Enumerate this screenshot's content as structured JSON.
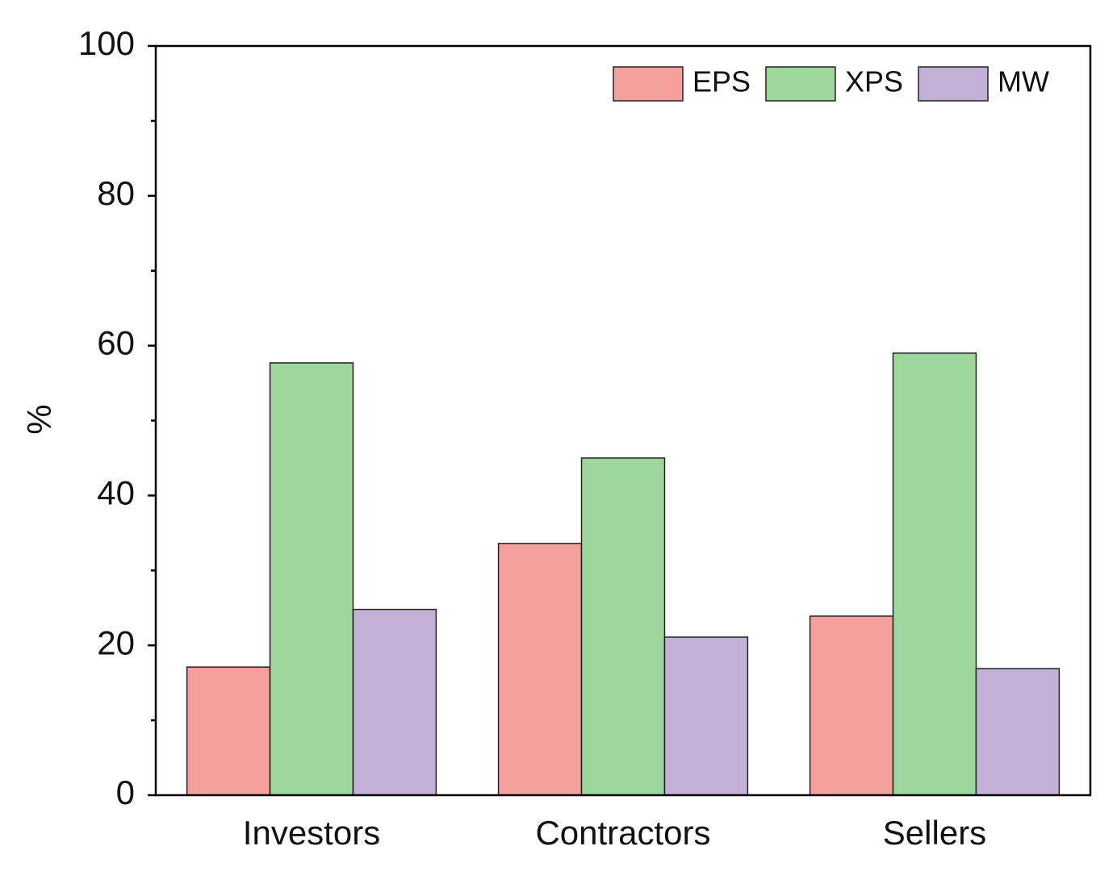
{
  "chart_data": {
    "type": "bar",
    "y_label": "%",
    "categories": [
      "Investors",
      "Contractors",
      "Sellers"
    ],
    "series": [
      {
        "name": "EPS",
        "color": "#f6a09d",
        "values": [
          17.1,
          33.6,
          23.9
        ]
      },
      {
        "name": "XPS",
        "color": "#9ed79b",
        "values": [
          57.7,
          45.0,
          59.0
        ]
      },
      {
        "name": "MW",
        "color": "#c2b0d6",
        "values": [
          24.8,
          21.1,
          16.9
        ]
      }
    ],
    "ylim": [
      0,
      100
    ],
    "yticks": [
      0,
      20,
      40,
      60,
      80,
      100
    ],
    "yminorticks": [
      10,
      30,
      50,
      70,
      90
    ],
    "legend": "top-right"
  }
}
